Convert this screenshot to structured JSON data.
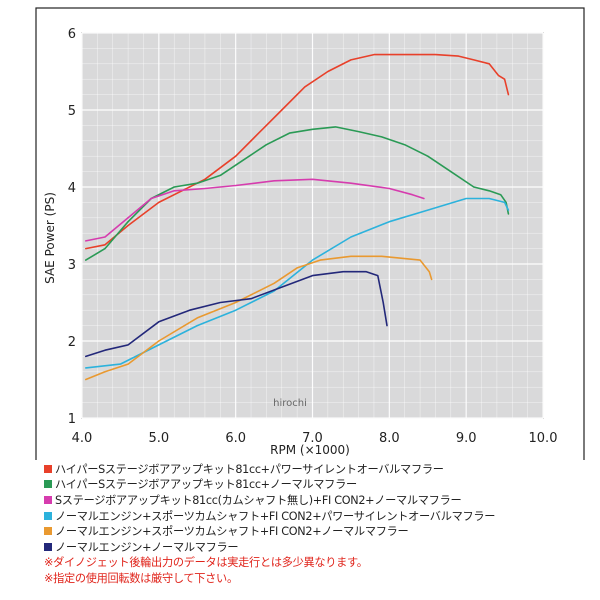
{
  "chart_data": {
    "type": "line",
    "title": "",
    "xlabel": "RPM (×1000)",
    "ylabel": "SAE Power (PS)",
    "xlim": [
      4.0,
      10.0
    ],
    "ylim": [
      1,
      6
    ],
    "x_ticks": [
      "4.0",
      "5.0",
      "6.0",
      "7.0",
      "8.0",
      "9.0",
      "10.0"
    ],
    "y_ticks": [
      "1",
      "2",
      "3",
      "4",
      "5",
      "6"
    ],
    "grid": true,
    "watermark": "hirochi",
    "series": [
      {
        "name": "ハイパーSステージボアアップキット81cc+パワーサイレントオーバルマフラー",
        "color": "#e8402a",
        "x": [
          4.05,
          4.3,
          4.6,
          5.0,
          5.3,
          5.6,
          6.0,
          6.3,
          6.6,
          6.9,
          7.2,
          7.5,
          7.8,
          8.0,
          8.3,
          8.6,
          8.9,
          9.1,
          9.3,
          9.42,
          9.5,
          9.55
        ],
        "y": [
          3.2,
          3.25,
          3.5,
          3.8,
          3.95,
          4.1,
          4.4,
          4.7,
          5.0,
          5.3,
          5.5,
          5.65,
          5.72,
          5.72,
          5.72,
          5.72,
          5.7,
          5.65,
          5.6,
          5.45,
          5.4,
          5.2
        ]
      },
      {
        "name": "ハイパーSステージボアアップキット81cc+ノーマルマフラー",
        "color": "#2a9a55",
        "x": [
          4.05,
          4.3,
          4.6,
          4.9,
          5.2,
          5.5,
          5.8,
          6.1,
          6.4,
          6.7,
          7.0,
          7.3,
          7.6,
          7.9,
          8.2,
          8.5,
          8.8,
          9.1,
          9.3,
          9.45,
          9.52,
          9.55
        ],
        "y": [
          3.05,
          3.2,
          3.55,
          3.85,
          4.0,
          4.05,
          4.15,
          4.35,
          4.55,
          4.7,
          4.75,
          4.78,
          4.72,
          4.65,
          4.55,
          4.4,
          4.2,
          4.0,
          3.95,
          3.9,
          3.8,
          3.65
        ]
      },
      {
        "name": "Sステージボアアップキット81cc(カムシャフト無し)+FI CON2+ノーマルマフラー",
        "color": "#d63cae",
        "x": [
          4.05,
          4.3,
          4.6,
          4.9,
          5.2,
          5.6,
          6.0,
          6.5,
          7.0,
          7.5,
          8.0,
          8.3,
          8.45
        ],
        "y": [
          3.3,
          3.35,
          3.6,
          3.85,
          3.95,
          3.98,
          4.02,
          4.08,
          4.1,
          4.05,
          3.98,
          3.9,
          3.85
        ]
      },
      {
        "name": "ノーマルエンジン+スポーツカムシャフト+FI CON2+パワーサイレントオーバルマフラー",
        "color": "#2cb2dc",
        "x": [
          4.05,
          4.5,
          5.0,
          5.5,
          6.0,
          6.5,
          7.0,
          7.5,
          8.0,
          8.5,
          9.0,
          9.3,
          9.5,
          9.55
        ],
        "y": [
          1.65,
          1.7,
          1.95,
          2.2,
          2.4,
          2.65,
          3.05,
          3.35,
          3.55,
          3.7,
          3.85,
          3.85,
          3.8,
          3.7
        ]
      },
      {
        "name": "ノーマルエンジン+スポーツカムシャフト+FI CON2+ノーマルマフラー",
        "color": "#e99930",
        "x": [
          4.05,
          4.3,
          4.6,
          5.0,
          5.5,
          6.0,
          6.5,
          6.8,
          7.1,
          7.5,
          7.9,
          8.2,
          8.4,
          8.52,
          8.55
        ],
        "y": [
          1.5,
          1.6,
          1.7,
          2.0,
          2.3,
          2.5,
          2.75,
          2.95,
          3.05,
          3.1,
          3.1,
          3.07,
          3.05,
          2.9,
          2.8
        ]
      },
      {
        "name": "ノーマルエンジン+ノーマルマフラー",
        "color": "#23287a",
        "x": [
          4.05,
          4.3,
          4.6,
          5.0,
          5.4,
          5.8,
          6.2,
          6.6,
          7.0,
          7.4,
          7.7,
          7.85,
          7.92,
          7.97
        ],
        "y": [
          1.8,
          1.88,
          1.95,
          2.25,
          2.4,
          2.5,
          2.55,
          2.7,
          2.85,
          2.9,
          2.9,
          2.85,
          2.5,
          2.2
        ]
      }
    ],
    "legend_position": "bottom"
  },
  "legend": {
    "items": [
      {
        "label": "ハイパーSステージボアアップキット81cc+パワーサイレントオーバルマフラー",
        "color": "#e8402a"
      },
      {
        "label": "ハイパーSステージボアアップキット81cc+ノーマルマフラー",
        "color": "#2a9a55"
      },
      {
        "label": "Sステージボアアップキット81cc(カムシャフト無し)+FI CON2+ノーマルマフラー",
        "color": "#d63cae"
      },
      {
        "label": "ノーマルエンジン+スポーツカムシャフト+FI CON2+パワーサイレントオーバルマフラー",
        "color": "#2cb2dc"
      },
      {
        "label": "ノーマルエンジン+スポーツカムシャフト+FI CON2+ノーマルマフラー",
        "color": "#e99930"
      },
      {
        "label": "ノーマルエンジン+ノーマルマフラー",
        "color": "#23287a"
      }
    ]
  },
  "notes": {
    "note1": "※ダイノジェット後輪出力のデータは実走行とは多少異なります。",
    "note2": "※指定の使用回転数は厳守して下さい。"
  }
}
